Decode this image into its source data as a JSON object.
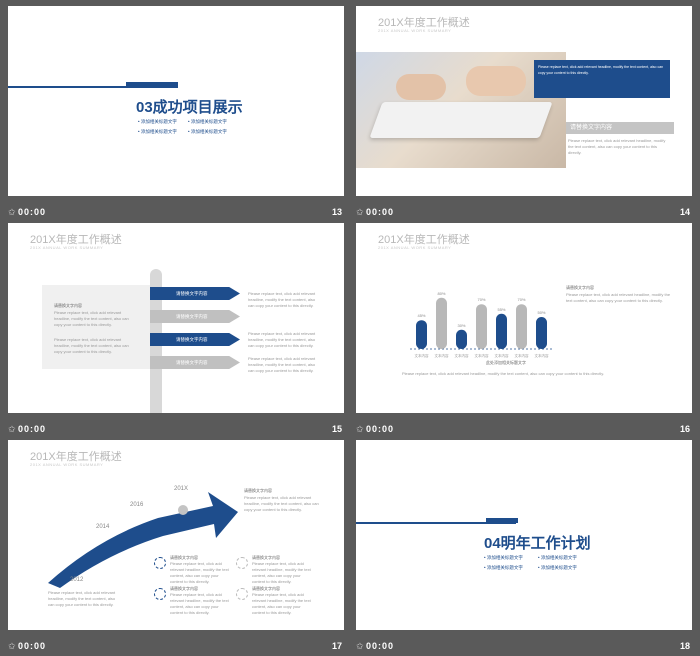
{
  "common": {
    "title": "201X年度工作概述",
    "subtitle": "201X ANNUAL WORK SUMMARY",
    "time": "00:00",
    "placeholder": "请替换文字内容",
    "body": "Please replace text, click add relevant headline, modify the text content, also can copy your content to this directly."
  },
  "slides": [
    {
      "num": "13",
      "heading": "03成功项目展示",
      "bullets": [
        "添加相关标题文字",
        "添加相关标题文字",
        "添加相关标题文字",
        "添加相关标题文字"
      ]
    },
    {
      "num": "14",
      "caption": "请替换文字内容"
    },
    {
      "num": "15",
      "labels": [
        "请替换文字内容",
        "请替换文字内容",
        "请替换文字内容",
        "请替换文字内容"
      ],
      "left_head": "请替换文字内容"
    },
    {
      "num": "16",
      "heading": "请替换文字内容",
      "bottom_label": "此处添加相关标题文字"
    },
    {
      "num": "17",
      "years": [
        "2012",
        "2014",
        "2016",
        "201X"
      ],
      "heads": [
        "请替换文字内容",
        "请替换文字内容",
        "请替换文字内容",
        "请替换文字内容",
        "请替换文字内容"
      ]
    },
    {
      "num": "18",
      "heading": "04明年工作计划",
      "bullets": [
        "添加相关标题文字",
        "添加相关标题文字",
        "添加相关标题文字",
        "添加相关标题文字"
      ]
    }
  ],
  "chart_data": {
    "type": "bar",
    "categories": [
      "文本内容",
      "文本内容",
      "文本内容",
      "文本内容",
      "文本内容",
      "文本内容",
      "文本内容"
    ],
    "values": [
      45,
      80,
      30,
      70,
      55,
      70,
      50
    ],
    "data_labels": [
      "45%",
      "80%",
      "30%",
      "70%",
      "55%",
      "70%",
      "50%"
    ],
    "colors": [
      "#1e4d8c",
      "#b8b8b8",
      "#1e4d8c",
      "#b8b8b8",
      "#1e4d8c",
      "#b8b8b8",
      "#1e4d8c"
    ],
    "ylim": [
      0,
      100
    ]
  }
}
